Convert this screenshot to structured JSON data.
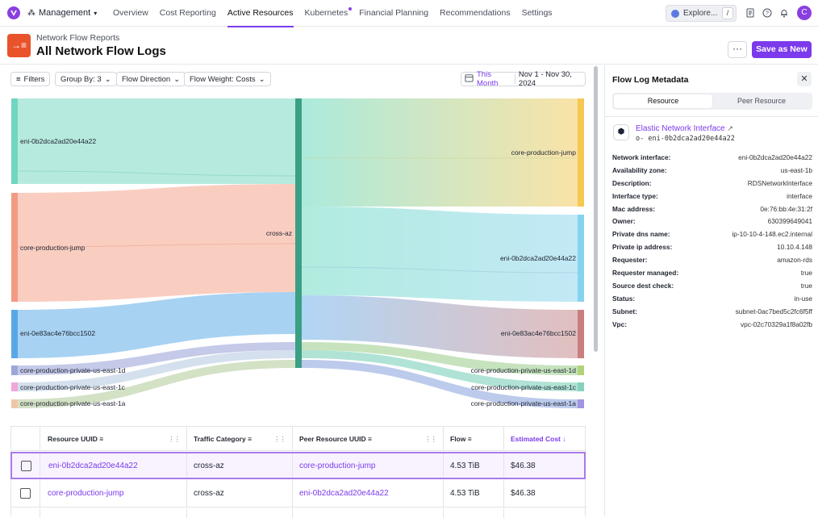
{
  "nav": {
    "org": "Management",
    "links": [
      "Overview",
      "Cost Reporting",
      "Active Resources",
      "Kubernetes",
      "Financial Planning",
      "Recommendations",
      "Settings"
    ],
    "active": "Active Resources",
    "explore_label": "Explore...",
    "explore_shortcut": "/",
    "avatar_initial": "C",
    "accent": "#7c3aed"
  },
  "header": {
    "subtitle": "Network Flow Reports",
    "title": "All Network Flow Logs",
    "more_label": "···",
    "save_label": "Save as New"
  },
  "toolbar": {
    "filters": "Filters",
    "group_by": "Group By: 3",
    "flow_direction": "Flow Direction",
    "flow_weight": "Flow Weight: Costs",
    "date_preset": "This Month",
    "date_range": "Nov 1 - Nov 30, 2024"
  },
  "sankey": {
    "left_nodes": [
      {
        "label": "eni-0b2dca2ad20e44a22",
        "color": "#6fd6c1"
      },
      {
        "label": "core-production-jump",
        "color": "#f39a83"
      },
      {
        "label": "eni-0e83ac4e76bcc1502",
        "color": "#5aa7e8"
      },
      {
        "label": "core-production-private-us-east-1d",
        "color": "#9aa7d8"
      },
      {
        "label": "core-production-private-us-east-1c",
        "color": "#f0a7d8"
      },
      {
        "label": "core-production-private-us-east-1a",
        "color": "#efc7a8"
      }
    ],
    "middle_node": {
      "label": "cross-az",
      "color": "#3b9f83"
    },
    "right_nodes": [
      {
        "label": "core-production-jump",
        "color": "#f7c84f"
      },
      {
        "label": "eni-0b2dca2ad20e44a22",
        "color": "#86d3f0"
      },
      {
        "label": "eni-0e83ac4e76bcc1502",
        "color": "#c97e7e"
      },
      {
        "label": "core-production-private-us-east-1d",
        "color": "#b2d27a"
      },
      {
        "label": "core-production-private-us-east-1c",
        "color": "#88d1c0"
      },
      {
        "label": "core-production-private-us-east-1a",
        "color": "#a095e0"
      }
    ]
  },
  "table": {
    "columns": [
      "Resource UUID",
      "Traffic Category",
      "Peer Resource UUID",
      "Flow",
      "Estimated Cost"
    ],
    "rows": [
      {
        "resource": "eni-0b2dca2ad20e44a22",
        "category": "cross-az",
        "peer": "core-production-jump",
        "flow": "4.53 TiB",
        "cost": "$46.38"
      },
      {
        "resource": "core-production-jump",
        "category": "cross-az",
        "peer": "eni-0b2dca2ad20e44a22",
        "flow": "4.53 TiB",
        "cost": "$46.38"
      }
    ]
  },
  "panel": {
    "title": "Flow Log Metadata",
    "tabs": [
      "Resource",
      "Peer Resource"
    ],
    "active_tab": "Resource",
    "resource_type": "Elastic Network Interface",
    "resource_id": "o- eni-0b2dca2ad20e44a22",
    "metadata": [
      {
        "key": "Network interface:",
        "value": "eni-0b2dca2ad20e44a22"
      },
      {
        "key": "Availability zone:",
        "value": "us-east-1b"
      },
      {
        "key": "Description:",
        "value": "RDSNetworkInterface"
      },
      {
        "key": "Interface type:",
        "value": "interface"
      },
      {
        "key": "Mac address:",
        "value": "0e:76:bb:4e:31:2f"
      },
      {
        "key": "Owner:",
        "value": "630399649041"
      },
      {
        "key": "Private dns name:",
        "value": "ip-10-10-4-148.ec2.internal"
      },
      {
        "key": "Private ip address:",
        "value": "10.10.4.148"
      },
      {
        "key": "Requester:",
        "value": "amazon-rds"
      },
      {
        "key": "Requester managed:",
        "value": "true"
      },
      {
        "key": "Source dest check:",
        "value": "true"
      },
      {
        "key": "Status:",
        "value": "in-use"
      },
      {
        "key": "Subnet:",
        "value": "subnet-0ac7bed5c2fc6f5ff"
      },
      {
        "key": "Vpc:",
        "value": "vpc-02c70329a1f8a02fb"
      }
    ]
  }
}
